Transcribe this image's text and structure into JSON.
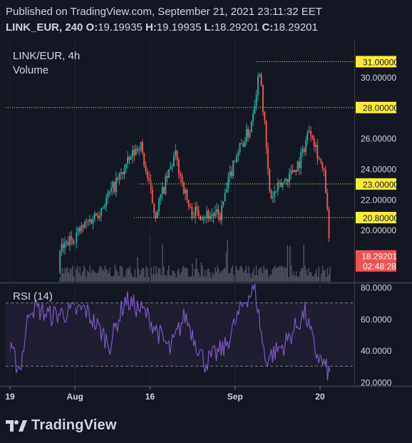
{
  "header": {
    "published": "Published on TradingView.com, September 21, 2021 23:11:32 EET",
    "symbol": "LINK_EUR, 240",
    "o_label": "O:",
    "o_value": "19.19935",
    "h_label": "H:",
    "h_value": "19.19935",
    "l_label": "L:",
    "l_value": "18.29201",
    "c_label": "C:",
    "c_value": "18.29201"
  },
  "legend": {
    "title": "LINK/EUR, 4h",
    "volume": "Volume",
    "rsi": "RSI (14)"
  },
  "brand": {
    "name": "TradingView"
  },
  "colors": {
    "background": "#131722",
    "up": "#26a69a",
    "down": "#ef5350",
    "rsi_line": "#7e57c2",
    "level_line": "#ffeb3b",
    "volume": "#5d606b"
  },
  "chart_data": [
    {
      "type": "candlestick",
      "title": "LINK/EUR, 4h",
      "x_ticks": [
        "19",
        "Aug",
        "16",
        "Sep",
        "20"
      ],
      "y_ticks": [
        "20.00000",
        "22.00000",
        "24.00000",
        "26.00000",
        "30.00000"
      ],
      "ylim": [
        16.6,
        32.0
      ],
      "horizontal_levels": [
        "20.80000",
        "23.00000",
        "28.00000",
        "31.00000"
      ],
      "last_price": "18.29201",
      "countdown": "02:48:28",
      "key_points": [
        {
          "x": "Jul 29",
          "price": 18.6
        },
        {
          "x": "Aug 6",
          "price": 21.3
        },
        {
          "x": "Aug 14",
          "price": 25.7
        },
        {
          "x": "Aug 17",
          "price": 21.0
        },
        {
          "x": "Aug 21",
          "price": 24.9
        },
        {
          "x": "Aug 24",
          "price": 21.2
        },
        {
          "x": "Aug 30",
          "price": 20.9
        },
        {
          "x": "Sep 2",
          "price": 24.8
        },
        {
          "x": "Sep 5",
          "price": 26.6
        },
        {
          "x": "Sep 7",
          "price": 30.7
        },
        {
          "x": "Sep 9",
          "price": 22.0
        },
        {
          "x": "Sep 15",
          "price": 24.5
        },
        {
          "x": "Sep 17",
          "price": 26.8
        },
        {
          "x": "Sep 20",
          "price": 23.3
        },
        {
          "x": "Sep 21",
          "price": 18.3
        }
      ],
      "volume_series": "Volume"
    },
    {
      "type": "line",
      "title": "RSI (14)",
      "y_ticks": [
        "20.0000",
        "40.0000",
        "60.0000",
        "80.0000"
      ],
      "ylim": [
        18,
        82
      ],
      "band": [
        30,
        70
      ],
      "key_points": [
        {
          "x": "Jul 19",
          "value": 40
        },
        {
          "x": "Jul 21",
          "value": 28
        },
        {
          "x": "Jul 23",
          "value": 68
        },
        {
          "x": "Jul 27",
          "value": 62
        },
        {
          "x": "Aug 3",
          "value": 66
        },
        {
          "x": "Aug 8",
          "value": 44
        },
        {
          "x": "Aug 11",
          "value": 72
        },
        {
          "x": "Aug 15",
          "value": 64
        },
        {
          "x": "Aug 20",
          "value": 40
        },
        {
          "x": "Aug 23",
          "value": 62
        },
        {
          "x": "Aug 27",
          "value": 32
        },
        {
          "x": "Aug 31",
          "value": 42
        },
        {
          "x": "Sep 4",
          "value": 72
        },
        {
          "x": "Sep 6",
          "value": 79
        },
        {
          "x": "Sep 8",
          "value": 34
        },
        {
          "x": "Sep 12",
          "value": 44
        },
        {
          "x": "Sep 16",
          "value": 64
        },
        {
          "x": "Sep 18",
          "value": 40
        },
        {
          "x": "Sep 21",
          "value": 24
        }
      ]
    }
  ]
}
